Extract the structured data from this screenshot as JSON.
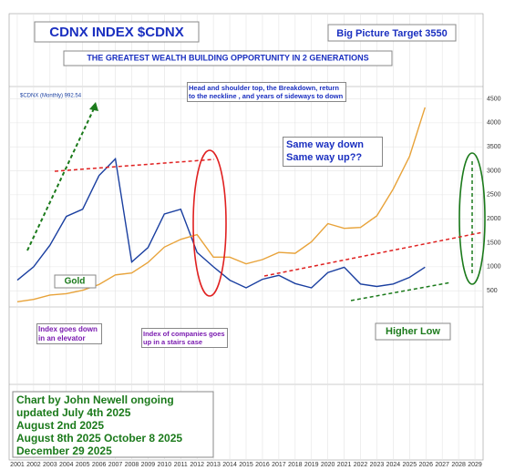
{
  "chart_data": {
    "type": "line",
    "title": "CDNX INDEX $CDNX",
    "subtitle": "THE GREATEST WEALTH BUILDING OPPORTUNITY IN 2 GENERATIONS",
    "annotations": [
      "Big Picture Target 3550",
      "Head and shoulder top, the Breakdown, return to the neckline , and years of sideways to down",
      "Same way down Same way up??",
      "Index goes down in an elevator",
      "Index of companies goes up in a stairs case",
      "Higher Low"
    ],
    "note_lines": [
      "Chart by John Newell ongoing",
      "updated July 4th 2025",
      "August 2nd 2025",
      "August 8th 2025 October 8 2025",
      "December 29 2025"
    ],
    "x": [
      2001,
      2002,
      2003,
      2004,
      2005,
      2006,
      2007,
      2008,
      2009,
      2010,
      2011,
      2012,
      2013,
      2014,
      2015,
      2016,
      2017,
      2018,
      2019,
      2020,
      2021,
      2022,
      2023,
      2024,
      2025,
      2025.95
    ],
    "series": [
      {
        "name": "$CDNX (Monthly) 992.54",
        "color": "#1a3fa0",
        "values": [
          720,
          1000,
          1450,
          2050,
          2200,
          2900,
          3250,
          1100,
          1400,
          2100,
          2200,
          1300,
          1000,
          720,
          560,
          740,
          820,
          650,
          560,
          880,
          990,
          640,
          590,
          640,
          780,
          992
        ]
      },
      {
        "name": "Gold",
        "color": "#e8a33a",
        "values": [
          270,
          320,
          410,
          440,
          510,
          630,
          830,
          870,
          1090,
          1410,
          1570,
          1670,
          1200,
          1200,
          1060,
          1150,
          1300,
          1280,
          1520,
          1900,
          1800,
          1820,
          2060,
          2620,
          3300,
          4322
        ]
      }
    ],
    "xlim": [
      2000.5,
      2029.5
    ],
    "xticks": [
      2001,
      2002,
      2003,
      2004,
      2005,
      2006,
      2007,
      2008,
      2009,
      2010,
      2011,
      2012,
      2013,
      2014,
      2015,
      2016,
      2017,
      2018,
      2019,
      2020,
      2021,
      2022,
      2023,
      2024,
      2025,
      2026,
      2027,
      2028,
      2029
    ],
    "ylim": [
      200,
      4700
    ],
    "yticks": [
      500,
      1000,
      1500,
      2000,
      2500,
      3000,
      3500,
      4000,
      4500
    ],
    "grid": true
  }
}
